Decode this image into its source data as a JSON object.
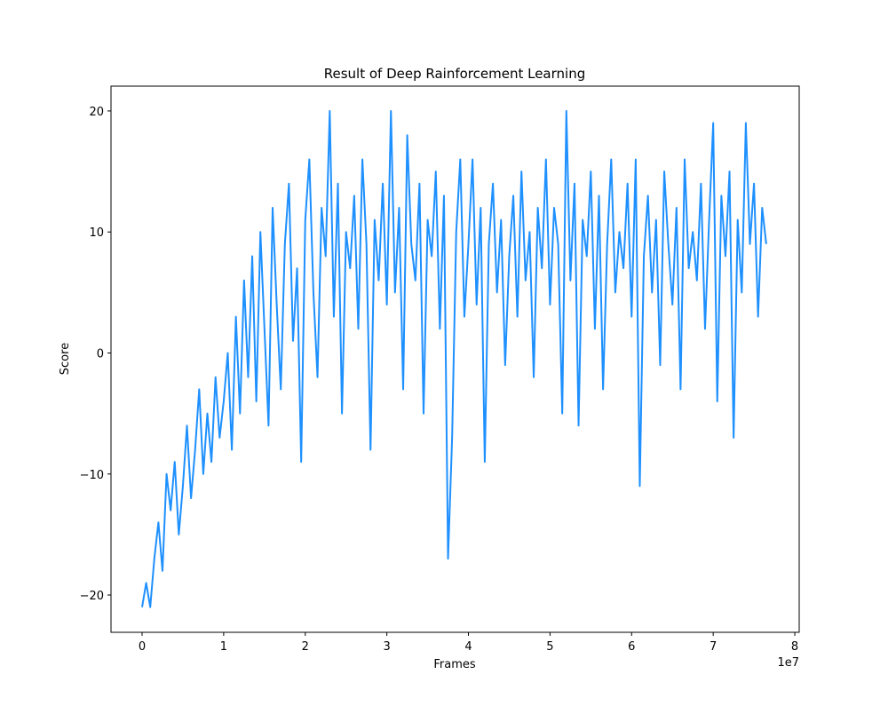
{
  "chart_data": {
    "type": "line",
    "title": "Result of Deep Rainforcement Learning",
    "xlabel": "Frames",
    "ylabel": "Score",
    "x_offset_label": "1e7",
    "x": [
      0,
      500000,
      1000000,
      1500000,
      2000000,
      2500000,
      3000000,
      3500000,
      4000000,
      4500000,
      5000000,
      5500000,
      6000000,
      6500000,
      7000000,
      7500000,
      8000000,
      8500000,
      9000000,
      9500000,
      10000000,
      10500000,
      11000000,
      11500000,
      12000000,
      12500000,
      13000000,
      13500000,
      14000000,
      14500000,
      15000000,
      15500000,
      16000000,
      16500000,
      17000000,
      17500000,
      18000000,
      18500000,
      19000000,
      19500000,
      20000000,
      20500000,
      21000000,
      21500000,
      22000000,
      22500000,
      23000000,
      23500000,
      24000000,
      24500000,
      25000000,
      25500000,
      26000000,
      26500000,
      27000000,
      27500000,
      28000000,
      28500000,
      29000000,
      29500000,
      30000000,
      30500000,
      31000000,
      31500000,
      32000000,
      32500000,
      33000000,
      33500000,
      34000000,
      34500000,
      35000000,
      35500000,
      36000000,
      36500000,
      37000000,
      37500000,
      38000000,
      38500000,
      39000000,
      39500000,
      40000000,
      40500000,
      41000000,
      41500000,
      42000000,
      42500000,
      43000000,
      43500000,
      44000000,
      44500000,
      45000000,
      45500000,
      46000000,
      46500000,
      47000000,
      47500000,
      48000000,
      48500000,
      49000000,
      49500000,
      50000000,
      50500000,
      51000000,
      51500000,
      52000000,
      52500000,
      53000000,
      53500000,
      54000000,
      54500000,
      55000000,
      55500000,
      56000000,
      56500000,
      57000000,
      57500000,
      58000000,
      58500000,
      59000000,
      59500000,
      60000000,
      60500000,
      61000000,
      61500000,
      62000000,
      62500000,
      63000000,
      63500000,
      64000000,
      64500000,
      65000000,
      65500000,
      66000000,
      66500000,
      67000000,
      67500000,
      68000000,
      68500000,
      69000000,
      69500000,
      70000000,
      70500000,
      71000000,
      71500000,
      72000000,
      72500000,
      73000000,
      73500000,
      74000000,
      74500000,
      75000000,
      75500000,
      76000000,
      76500000
    ],
    "series": [
      {
        "name": "Score",
        "color": "#1e90ff",
        "values": [
          -21,
          -19,
          -21,
          -17,
          -14,
          -18,
          -10,
          -13,
          -9,
          -15,
          -11,
          -6,
          -12,
          -8,
          -3,
          -10,
          -5,
          -9,
          -2,
          -7,
          -4,
          0,
          -8,
          3,
          -5,
          6,
          -2,
          8,
          -4,
          10,
          2,
          -6,
          12,
          4,
          -3,
          9,
          14,
          1,
          7,
          -9,
          11,
          16,
          5,
          -2,
          12,
          8,
          20,
          3,
          14,
          -5,
          10,
          7,
          13,
          2,
          16,
          9,
          -8,
          11,
          6,
          14,
          4,
          20,
          5,
          12,
          -3,
          18,
          9,
          6,
          14,
          -5,
          11,
          8,
          15,
          2,
          13,
          -17,
          -7,
          10,
          16,
          3,
          9,
          16,
          4,
          12,
          -9,
          9,
          14,
          5,
          11,
          -1,
          8,
          13,
          3,
          15,
          6,
          10,
          -2,
          12,
          7,
          16,
          4,
          12,
          9,
          -5,
          20,
          6,
          14,
          -6,
          11,
          8,
          15,
          2,
          13,
          -3,
          9,
          16,
          5,
          10,
          7,
          14,
          3,
          16,
          -11,
          8,
          13,
          5,
          11,
          -1,
          15,
          9,
          4,
          12,
          -3,
          16,
          7,
          10,
          6,
          14,
          2,
          11,
          19,
          -4,
          13,
          8,
          15,
          -7,
          11,
          5,
          19,
          9,
          14,
          3,
          12,
          9
        ]
      }
    ],
    "xlim": [
      -3810000,
      80540000
    ],
    "xticks": [
      0,
      {
        "value": 10000000,
        "label": "1"
      },
      {
        "value": 20000000,
        "label": "2"
      },
      {
        "value": 30000000,
        "label": "3"
      },
      {
        "value": 40000000,
        "label": "4"
      },
      {
        "value": 50000000,
        "label": "5"
      },
      {
        "value": 60000000,
        "label": "6"
      },
      {
        "value": 70000000,
        "label": "7"
      },
      {
        "value": 80000000,
        "label": "8"
      }
    ],
    "ylim": [
      -23.08,
      22.05
    ],
    "yticks": [
      {
        "value": -20,
        "label": "−20"
      },
      {
        "value": -10,
        "label": "−10"
      },
      0,
      10,
      20
    ],
    "grid": false
  }
}
